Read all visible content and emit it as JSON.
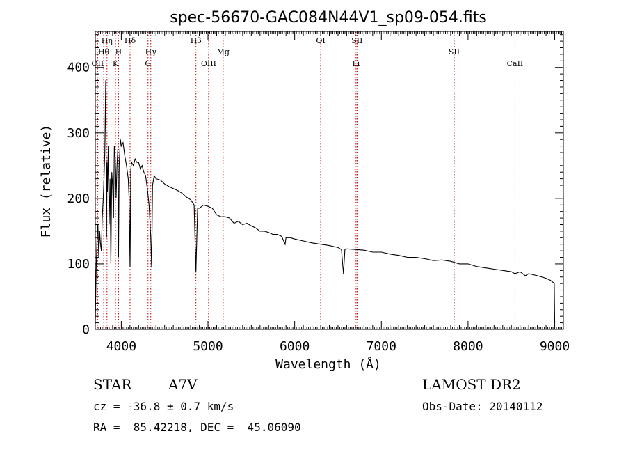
{
  "chart_data": {
    "type": "line",
    "title": "spec-56670-GAC084N44V1_sp09-054.fits",
    "xlabel": "Wavelength (Å)",
    "ylabel": "Flux (relative)",
    "xlim": [
      3700,
      9100
    ],
    "ylim": [
      0,
      455
    ],
    "xticks": [
      4000,
      5000,
      6000,
      7000,
      8000,
      9000
    ],
    "yticks": [
      0,
      100,
      200,
      300,
      400
    ],
    "grid": false,
    "line_color": "#000000",
    "marker_color": "#c00000",
    "series": [
      {
        "x": [
          3700,
          3710,
          3720,
          3730,
          3740,
          3750,
          3760,
          3770,
          3780,
          3790,
          3800,
          3810,
          3820,
          3830,
          3835,
          3840,
          3850,
          3860,
          3870,
          3880,
          3890,
          3900,
          3910,
          3920,
          3930,
          3935,
          3940,
          3950,
          3960,
          3968,
          3975,
          3990,
          4000,
          4020,
          4040,
          4060,
          4080,
          4090,
          4101,
          4110,
          4120,
          4140,
          4160,
          4180,
          4200,
          4220,
          4240,
          4260,
          4280,
          4300,
          4320,
          4340,
          4350,
          4360,
          4380,
          4400,
          4450,
          4500,
          4550,
          4600,
          4650,
          4700,
          4750,
          4800,
          4840,
          4861,
          4880,
          4900,
          4950,
          5000,
          5050,
          5100,
          5150,
          5200,
          5250,
          5300,
          5350,
          5400,
          5450,
          5500,
          5550,
          5600,
          5650,
          5700,
          5750,
          5800,
          5850,
          5890,
          5900,
          5950,
          6000,
          6100,
          6200,
          6300,
          6400,
          6500,
          6540,
          6563,
          6580,
          6600,
          6700,
          6800,
          6900,
          7000,
          7100,
          7200,
          7300,
          7400,
          7500,
          7600,
          7700,
          7800,
          7900,
          8000,
          8100,
          8200,
          8300,
          8400,
          8500,
          8540,
          8600,
          8662,
          8700,
          8800,
          8900,
          8950,
          8980,
          8995,
          9000
        ],
        "y": [
          10,
          90,
          140,
          160,
          110,
          150,
          130,
          120,
          170,
          195,
          230,
          270,
          380,
          140,
          255,
          210,
          280,
          160,
          230,
          100,
          240,
          220,
          170,
          280,
          260,
          240,
          200,
          250,
          275,
          110,
          250,
          290,
          280,
          285,
          265,
          250,
          230,
          200,
          95,
          245,
          255,
          250,
          260,
          255,
          255,
          245,
          250,
          240,
          235,
          215,
          190,
          140,
          95,
          220,
          235,
          230,
          228,
          222,
          218,
          215,
          212,
          208,
          202,
          198,
          190,
          88,
          185,
          185,
          190,
          188,
          185,
          175,
          172,
          172,
          170,
          162,
          165,
          160,
          162,
          158,
          155,
          150,
          150,
          148,
          145,
          145,
          142,
          130,
          140,
          140,
          138,
          135,
          132,
          130,
          128,
          125,
          122,
          85,
          122,
          123,
          122,
          121,
          118,
          118,
          115,
          113,
          110,
          110,
          108,
          105,
          106,
          104,
          100,
          100,
          96,
          94,
          92,
          90,
          88,
          85,
          88,
          82,
          85,
          82,
          78,
          75,
          72,
          70,
          10
        ]
      }
    ],
    "lines": [
      {
        "label": "Hη",
        "x": 3835,
        "row": 1
      },
      {
        "label": "Hθ",
        "x": 3797,
        "row": 2
      },
      {
        "label": "OII",
        "x": 3727,
        "row": 3
      },
      {
        "label": "Hδ",
        "x": 4101,
        "row": 1
      },
      {
        "label": "H",
        "x": 3968,
        "row": 2
      },
      {
        "label": "K",
        "x": 3933,
        "row": 3
      },
      {
        "label": "Hγ",
        "x": 4340,
        "row": 2
      },
      {
        "label": "G",
        "x": 4308,
        "row": 3
      },
      {
        "label": "Hβ",
        "x": 4861,
        "row": 1
      },
      {
        "label": "OIII",
        "x": 5007,
        "row": 3
      },
      {
        "label": "Mg",
        "x": 5175,
        "row": 2
      },
      {
        "label": "OI",
        "x": 6300,
        "row": 1
      },
      {
        "label": "SII",
        "x": 6720,
        "row": 1
      },
      {
        "label": "Li",
        "x": 6708,
        "row": 3
      },
      {
        "label": "SII",
        "x": 7840,
        "row": 2
      },
      {
        "label": "CaII",
        "x": 8542,
        "row": 3
      }
    ]
  },
  "info": {
    "object_class": "STAR",
    "subclass": "A7V",
    "cz": "cz = -36.8 ± 0.7 km/s",
    "radec": "RA =  85.42218, DEC =  45.06090",
    "survey": "LAMOST DR2",
    "obs_date": "Obs-Date: 20140112"
  }
}
